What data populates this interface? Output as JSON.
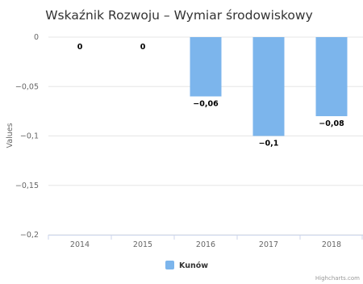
{
  "chart_data": {
    "type": "bar",
    "title": "Wskaźnik Rozwoju – Wymiar środowiskowy",
    "ylabel": "Values",
    "categories": [
      "2014",
      "2015",
      "2016",
      "2017",
      "2018"
    ],
    "series": [
      {
        "name": "Kunów",
        "values": [
          0,
          0,
          -0.06,
          -0.1,
          -0.08
        ],
        "color": "#7cb5ec"
      }
    ],
    "data_labels": [
      "0",
      "0",
      "−0,06",
      "−0,1",
      "−0,08"
    ],
    "ylim": [
      -0.2,
      0
    ],
    "yticks": [
      0,
      -0.05,
      -0.1,
      -0.15,
      -0.2
    ],
    "ytick_labels": [
      "0",
      "−0,05",
      "−0,1",
      "−0,15",
      "−0,2"
    ],
    "grid": true,
    "legend_position": "bottom-center",
    "credits": "Highcharts.com"
  }
}
